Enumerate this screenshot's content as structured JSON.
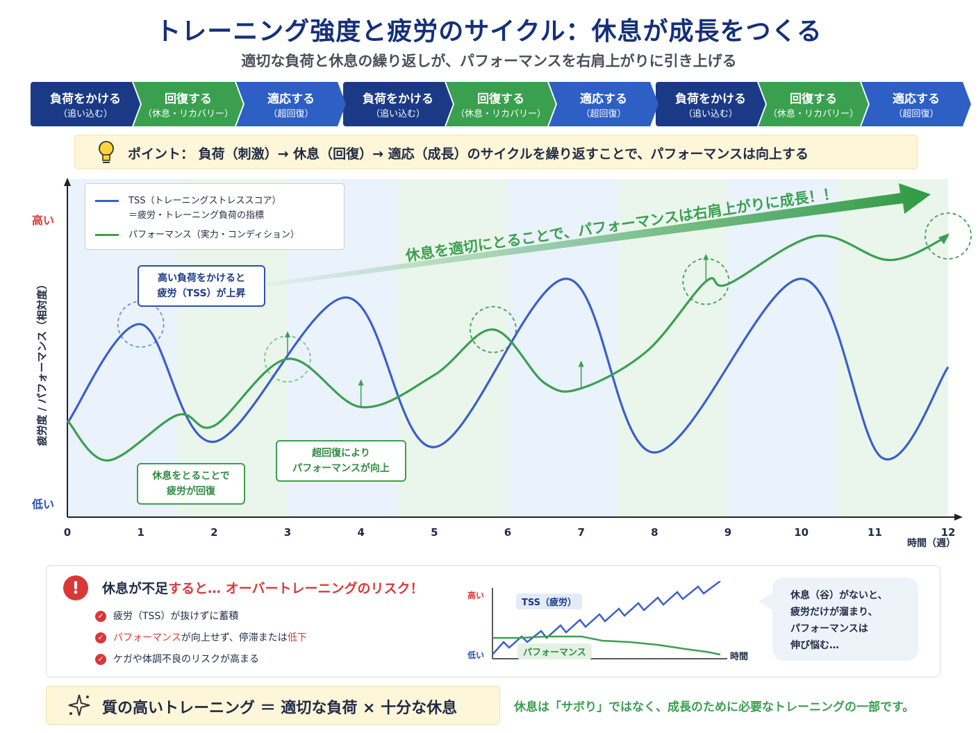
{
  "title": "トレーニング強度と疲労のサイクル：休息が成長をつくる",
  "subtitle": "適切な負荷と休息の繰り返しが、パフォーマンスを右肩上がりに引き上げる",
  "colors": {
    "navy": "#1a3a86",
    "green": "#3aa04f",
    "blue": "#3b5fc9",
    "red": "#d93838"
  },
  "cycle_steps": [
    {
      "label": "負荷をかける",
      "sub": "（追い込む）",
      "color": "#1a3a86"
    },
    {
      "label": "回復する",
      "sub": "（休息・リカバリー）",
      "color": "#3aa04f"
    },
    {
      "label": "適応する",
      "sub": "（超回復）",
      "color": "#2d5fc4"
    },
    {
      "label": "負荷をかける",
      "sub": "（追い込む）",
      "color": "#1a3a86"
    },
    {
      "label": "回復する",
      "sub": "（休息・リカバリー）",
      "color": "#3aa04f"
    },
    {
      "label": "適応する",
      "sub": "（超回復）",
      "color": "#2d5fc4"
    },
    {
      "label": "負荷をかける",
      "sub": "（追い込む）",
      "color": "#1a3a86"
    },
    {
      "label": "回復する",
      "sub": "（休息・リカバリー）",
      "color": "#3aa04f"
    },
    {
      "label": "適応する",
      "sub": "（超回復）",
      "color": "#2d5fc4"
    }
  ],
  "point": {
    "icon": "lightbulb-icon",
    "text": "ポイント：  負荷（刺激）→ 休息（回復）→ 適応（成長）のサイクルを繰り返すことで、パフォーマンスは向上する"
  },
  "legend": {
    "tss_line1": "TSS（トレーニングストレススコア）",
    "tss_line2": "＝疲労・トレーニング負荷の指標",
    "perf": "パフォーマンス（実力・コンディション）"
  },
  "callouts": {
    "high_load_1": "高い負荷をかけると",
    "high_load_2": "疲労（TSS）が上昇",
    "rest_1": "休息をとることで",
    "rest_2": "疲労が回復",
    "super_1": "超回復により",
    "super_2": "パフォーマンスが向上"
  },
  "growth_arrow": {
    "text1": "休息を適切にとることで、",
    "text2": "パフォーマンスは右肩上がりに成長！！"
  },
  "chart_data": {
    "type": "line",
    "xlabel": "時間（週）",
    "ylabel": "疲労度 / パフォーマンス（相対度）",
    "y_high_label": "高い",
    "y_low_label": "低い",
    "xlim": [
      0,
      12
    ],
    "ylim": [
      0,
      100
    ],
    "x_ticks": [
      "0",
      "1",
      "2",
      "3",
      "4",
      "5",
      "6",
      "7",
      "8",
      "9",
      "10",
      "11",
      "12"
    ],
    "series": [
      {
        "name": "TSS（トレーニングストレススコア）",
        "color": "#3b5fc9",
        "points": [
          [
            0,
            30
          ],
          [
            1.0,
            67
          ],
          [
            2.0,
            23
          ],
          [
            3.8,
            77
          ],
          [
            5.0,
            21
          ],
          [
            6.8,
            84
          ],
          [
            8.0,
            19
          ],
          [
            10.0,
            84
          ],
          [
            11.1,
            17
          ],
          [
            12.0,
            51
          ]
        ]
      },
      {
        "name": "パフォーマンス（実力・コンディション）",
        "color": "#3aa04f",
        "points": [
          [
            0,
            31
          ],
          [
            0.55,
            16
          ],
          [
            1.5,
            33
          ],
          [
            2.0,
            29
          ],
          [
            3.0,
            54
          ],
          [
            4.0,
            36
          ],
          [
            5.0,
            48
          ],
          [
            5.8,
            65
          ],
          [
            6.5,
            45
          ],
          [
            7.0,
            43
          ],
          [
            7.9,
            57
          ],
          [
            8.7,
            83
          ],
          [
            9.0,
            82
          ],
          [
            10.2,
            100
          ],
          [
            11.2,
            91
          ],
          [
            12.0,
            100
          ]
        ]
      }
    ]
  },
  "risk": {
    "title_a": "休息が不足",
    "title_b": "すると… オーバートレーニングのリスク！",
    "items": [
      {
        "pre": "",
        "hl": "",
        "text": "疲労（TSS）が抜けずに蓄積",
        "post": ""
      },
      {
        "pre": "",
        "hl": "パフォーマンス",
        "text": "が向上せず、停滞または",
        "post": "低下"
      },
      {
        "pre": "",
        "hl": "",
        "text": "ケガや体調不良のリスクが高まる",
        "post": ""
      }
    ]
  },
  "mini_chart": {
    "high": "高い",
    "low": "低い",
    "tss_label": "TSS（疲労）",
    "perf_label": "パフォーマンス",
    "x_label": "時間"
  },
  "speech": [
    "休息（谷）がないと、",
    "疲労だけが溜まり、",
    "パフォーマンスは",
    "伸び悩む…"
  ],
  "formula": "質の高いトレーニング  ＝  適切な負荷  ×  十分な休息",
  "footer_note": "休息は「サボり」ではなく、成長のために必要なトレーニングの一部です。"
}
